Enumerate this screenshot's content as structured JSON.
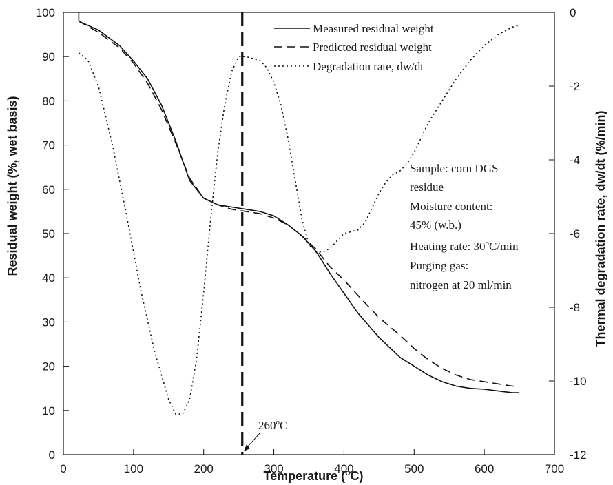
{
  "chart_data": {
    "type": "line",
    "title": "",
    "xlabel": "Temperature (",
    "xlabel_sup": "o",
    "xlabel_tail": "C)",
    "ylabel": "Residual weight (%, wet basis)",
    "y2label": "Thermal degradation rate, dw/dt (%/min)",
    "xlim": [
      0,
      700
    ],
    "ylim": [
      0,
      100
    ],
    "y2lim": [
      -12,
      0
    ],
    "xticks": [
      "0",
      "100",
      "200",
      "300",
      "400",
      "500",
      "600",
      "700"
    ],
    "yticks": [
      "0",
      "10",
      "20",
      "30",
      "40",
      "50",
      "60",
      "70",
      "80",
      "90",
      "100"
    ],
    "y2ticks": [
      "0",
      "-2",
      "-4",
      "-6",
      "-8",
      "-10",
      "-12"
    ],
    "grid": false,
    "legend_position": "top-right",
    "series": [
      {
        "name": "Measured residual weight",
        "axis": "left",
        "style": "solid",
        "x": [
          22,
          50,
          80,
          100,
          120,
          140,
          160,
          180,
          200,
          220,
          240,
          260,
          280,
          300,
          320,
          340,
          360,
          380,
          400,
          420,
          450,
          480,
          500,
          520,
          540,
          560,
          580,
          600,
          620,
          640,
          650
        ],
        "y": [
          98,
          96,
          92.5,
          89,
          85,
          79,
          71,
          62,
          58,
          56.5,
          56,
          55.5,
          55,
          54,
          52,
          49.5,
          46,
          41,
          36.5,
          32,
          26.5,
          22,
          20,
          18,
          16.5,
          15.5,
          15,
          14.8,
          14.4,
          14,
          14
        ]
      },
      {
        "name": "Predicted residual weight",
        "axis": "left",
        "style": "dashed",
        "x": [
          22,
          50,
          80,
          100,
          120,
          140,
          160,
          180,
          200,
          220,
          240,
          260,
          280,
          300,
          320,
          340,
          360,
          380,
          400,
          420,
          450,
          480,
          500,
          520,
          540,
          560,
          580,
          600,
          620,
          640,
          650
        ],
        "y": [
          98,
          95.5,
          92,
          88.5,
          84,
          78,
          70.5,
          62.5,
          58,
          56.5,
          55.5,
          55,
          54.5,
          53.5,
          52,
          49.5,
          46.5,
          42.5,
          39.5,
          36,
          31,
          27,
          24,
          21.5,
          19.5,
          18,
          17,
          16.5,
          16,
          15.5,
          15.5
        ]
      },
      {
        "name": "Degradation rate, dw/dt",
        "axis": "right",
        "style": "dotted",
        "x": [
          22,
          35,
          50,
          70,
          90,
          110,
          130,
          150,
          160,
          170,
          180,
          190,
          200,
          210,
          220,
          230,
          240,
          250,
          260,
          270,
          280,
          290,
          300,
          310,
          320,
          330,
          340,
          350,
          360,
          370,
          380,
          390,
          400,
          420,
          430,
          440,
          450,
          460,
          470,
          480,
          490,
          500,
          510,
          520,
          540,
          560,
          580,
          600,
          620,
          640,
          650
        ],
        "y": [
          -1.1,
          -1.3,
          -2.0,
          -3.6,
          -5.5,
          -7.5,
          -9.2,
          -10.5,
          -10.9,
          -10.9,
          -10.5,
          -9.4,
          -7.6,
          -5.6,
          -3.8,
          -2.5,
          -1.6,
          -1.2,
          -1.2,
          -1.25,
          -1.3,
          -1.5,
          -1.9,
          -2.5,
          -3.4,
          -4.5,
          -5.6,
          -6.3,
          -6.5,
          -6.5,
          -6.4,
          -6.2,
          -6.0,
          -5.9,
          -5.7,
          -5.3,
          -4.9,
          -4.6,
          -4.4,
          -4.3,
          -4.1,
          -3.8,
          -3.4,
          -3.0,
          -2.4,
          -1.8,
          -1.3,
          -0.9,
          -0.6,
          -0.4,
          -0.35
        ]
      }
    ],
    "vertical_marker": {
      "x": 255,
      "style": "long-dash"
    },
    "annotations": [
      {
        "text": "260",
        "sup": "o",
        "tail": "C",
        "arrow_to_x": 255
      }
    ],
    "info_box": [
      "Sample: corn DGS",
      "residue",
      "Moisture content:",
      "45% (w.b.)",
      "Heating rate: 30",
      "Purging gas:",
      "nitrogen at 20 ml/min"
    ],
    "info_box_heating_sup": "o",
    "info_box_heating_tail": "C/min"
  }
}
